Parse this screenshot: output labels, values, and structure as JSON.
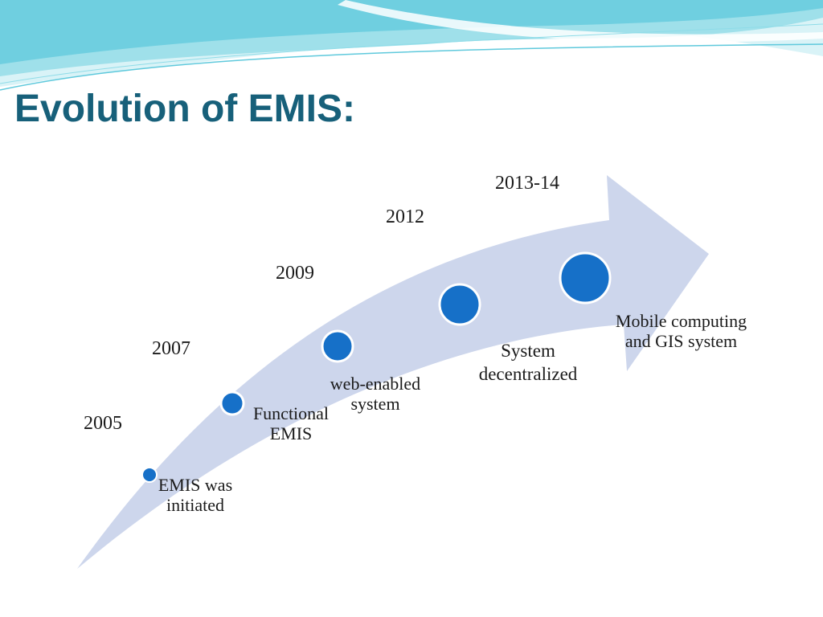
{
  "slide": {
    "title": "Evolution of EMIS:"
  },
  "colors": {
    "title": "#17607a",
    "arrow_fill": "#cdd6ec",
    "milestone_fill": "#1670c8",
    "milestone_ring": "#ffffff",
    "wave_light": "#d9f3f7",
    "wave_mid": "#8fdce8",
    "wave_accent": "#5fc9dc"
  },
  "timeline": {
    "milestones": [
      {
        "year": "2005",
        "label_lines": [
          "EMIS was",
          "initiated"
        ]
      },
      {
        "year": "2007",
        "label_lines": [
          "Functional",
          "EMIS"
        ]
      },
      {
        "year": "2009",
        "label_lines": [
          "web-enabled",
          "system"
        ]
      },
      {
        "year": "2012",
        "label_lines": [
          "System",
          "decentralized"
        ]
      },
      {
        "year": "2013-14",
        "label_lines": [
          "Mobile computing",
          "and GIS system"
        ]
      }
    ]
  }
}
